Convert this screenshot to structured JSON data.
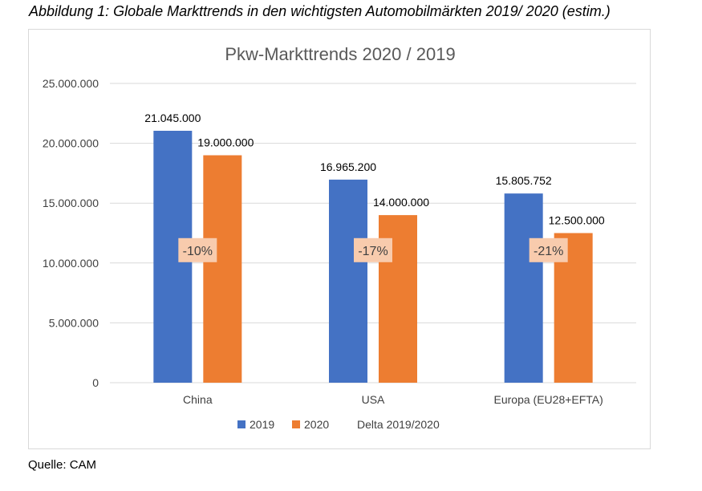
{
  "caption": "Abbildung 1: Globale Markttrends in den wichtigsten Automobilmärkten 2019/ 2020 (estim.)",
  "source": "Quelle: CAM",
  "colors": {
    "s2019": "#4472C4",
    "s2020": "#ED7D31",
    "delta_fill": "#F8CBAD",
    "grid": "#d9d9d9",
    "text": "#404040"
  },
  "chart_data": {
    "type": "bar",
    "title": "Pkw-Markttrends 2020 / 2019",
    "categories": [
      "China",
      "USA",
      "Europa (EU28+EFTA)"
    ],
    "series": [
      {
        "name": "2019",
        "values": [
          21045000,
          16965200,
          15805752
        ],
        "labels": [
          "21.045.000",
          "16.965.200",
          "15.805.752"
        ]
      },
      {
        "name": "2020",
        "values": [
          19000000,
          14000000,
          12500000
        ],
        "labels": [
          "19.000.000",
          "14.000.000",
          "12.500.000"
        ]
      }
    ],
    "delta": {
      "name": "Delta 2019/2020",
      "labels": [
        "-10%",
        "-17%",
        "-21%"
      ]
    },
    "ylim": [
      0,
      25000000
    ],
    "yticks": [
      0,
      5000000,
      10000000,
      15000000,
      20000000,
      25000000
    ],
    "ytick_labels": [
      "0",
      "5.000.000",
      "10.000.000",
      "15.000.000",
      "20.000.000",
      "25.000.000"
    ],
    "grid": true,
    "legend": "bottom"
  }
}
